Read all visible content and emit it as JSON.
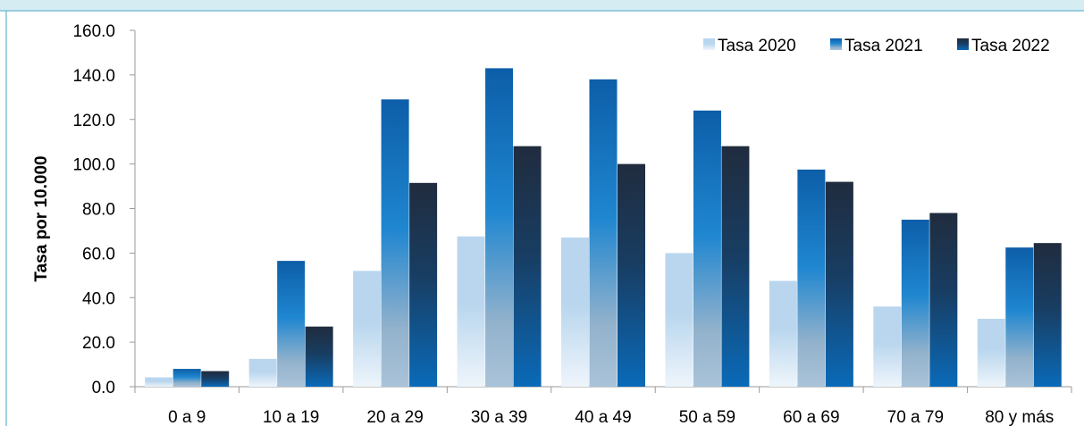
{
  "chart_data": {
    "type": "bar",
    "ylabel": "Tasa por 10.000",
    "ylim": [
      0,
      160
    ],
    "yticks": [
      "0.0",
      "20.0",
      "40.0",
      "60.0",
      "80.0",
      "100.0",
      "120.0",
      "140.0",
      "160.0"
    ],
    "categories": [
      "0 a 9",
      "10 a 19",
      "20 a 29",
      "30 a 39",
      "40 a 49",
      "50 a 59",
      "60 a 69",
      "70 a 79",
      "80 y más"
    ],
    "series": [
      {
        "name": "Tasa 2020",
        "values": [
          4.2,
          12.5,
          52.0,
          67.5,
          67.0,
          60.0,
          47.5,
          36.0,
          30.5
        ]
      },
      {
        "name": "Tasa 2021",
        "values": [
          8.0,
          56.5,
          129.0,
          143.0,
          138.0,
          124.0,
          97.5,
          75.0,
          62.5
        ]
      },
      {
        "name": "Tasa 2022",
        "values": [
          7.0,
          27.0,
          91.5,
          108.0,
          100.0,
          108.0,
          92.0,
          78.0,
          64.5
        ]
      }
    ],
    "legend_position": "top-right",
    "grid": false,
    "colors": {
      "frame_top": "#d6ecf3",
      "frame_border": "#7ec0d8",
      "axis": "#9a9a9a",
      "text": "#000000"
    }
  }
}
